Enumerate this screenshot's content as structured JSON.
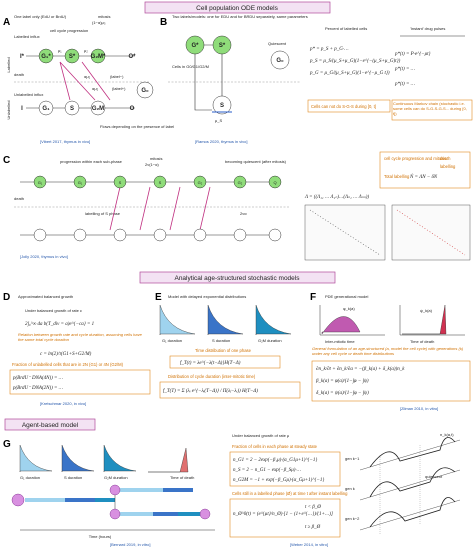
{
  "headers": {
    "ode": "Cell population ODE models",
    "age": "Analytical age-structured stochastic models",
    "agent": "Agent-based model"
  },
  "A": {
    "letter": "A",
    "note": "One label only (EdU or BrdU)",
    "labelled_influx": "Labelled influx",
    "unlabelled_influx": "Unlabelled influx",
    "mitosis": "mitosis",
    "mitosis_rate": "(1−α)μ₃",
    "progression": "cell cycle progression",
    "death": "death",
    "label_plus": "(label+)",
    "label_minus": "(label−)",
    "flows": "Flows depending on the presence of label",
    "citation": "[Vibert 2017, thymus in vivo]",
    "row_labelled": "Labelled",
    "row_unlabelled": "Unlabelled",
    "nodes": [
      "I*",
      "G₁*",
      "S*",
      "G₂M*",
      "O*",
      "I",
      "G₁",
      "S",
      "G₂M",
      "O",
      "G₀"
    ],
    "rates": [
      "μ₁",
      "μ₂",
      "αμ₂",
      "αμ₂"
    ]
  },
  "B": {
    "letter": "B",
    "note": "Two labels/models: one for EDU and for BRDU separately, same parameters",
    "cells": "Cells in G0/G1/G2/M",
    "quiescent": "Quiescent",
    "citation": "[Ramos 2020, thymus in vivo]",
    "nodes": [
      "G*",
      "S*",
      "G₀",
      "S"
    ],
    "rate": "μ_S",
    "percent": "Percent of labelled cells",
    "pulses": "'Instant' drug pulses",
    "formulas": [
      "p* = p_S + p_G·…",
      "p_S = μ_S/(μ_S+μ_G)(1−e^{−(μ_S+μ_G)t})",
      "p_G = μ_G/(μ_S+μ_G)(1−e^{−μ_G t})"
    ],
    "markov": [
      "p*(t) = P·e^{−μt}",
      "p*(t) = …",
      "p*(t) = …"
    ],
    "box1": "Cells can not do S-G-S during [0, t]",
    "box2": "Continuous Markov chain (stochastic i.e. some cells can do S-G-S-G-S... during [0, t])"
  },
  "C": {
    "letter": "C",
    "progression": "progression within each sub-phase",
    "mitosis": "mitosis",
    "mitosis_rate": "2ν(1−α)",
    "quiescent": "becoming quiescent (after mitosis)",
    "death": "death",
    "labelling": "labelling of S phase",
    "mitosis2": "2να",
    "nodes": [
      "G₁",
      "G₁",
      "S",
      "S",
      "G₂",
      "G₂",
      "Q"
    ],
    "citation": "[Jolly 2020, thymus in vivo]",
    "box_title": "cell cycle progression and mitosis",
    "box_death": "death",
    "box_label": "labelling",
    "total": "Total labelling",
    "eq": "Ṅ = ΛN − δN",
    "matrix": "Λ = ((Λ₁₁ … Λ₁ₙ)…(Λₙ₁ … Λₙₙ))"
  },
  "D": {
    "letter": "D",
    "title": "Approximated balanced growth",
    "growth": "Under balanced growth of rate c",
    "eq1": "2∫₀^∞ da b(T_div = a)e^{−ca} = 1",
    "note1": "Relation between growth rate and cycle duration, assuming cells have the same total cycle duration",
    "eq2": "c = ln(2)/τ(G1+S+G2/M)",
    "note2": "Fraction of unlabelled cells that are in 2N (G1) or 4N (G2/M)",
    "eq3": "p(BrdU⁻ DNA(4N)) = …",
    "eq4": "p(BrdU⁻ DNA(2N)) = …",
    "citation": "[Kretschmar 2020, in vivo]"
  },
  "E": {
    "letter": "E",
    "title": "Model with delayed exponential distributions",
    "g1": "G₁ duration",
    "s": "S duration",
    "g2m": "G₂M duration",
    "phase": "Time distribution of one phase",
    "eq1": "f_T(t) = λe^{−λ(t−Δ)}H(T−Δ)",
    "cycle": "Distribution of cycle duration (inter-mitotic time)",
    "eq2": "f_T(T) = Σ (λᵢ e^{−λᵢ(T−Δ)} / Π(λⱼ−λᵢ)) H(T−Δ)"
  },
  "F": {
    "letter": "F",
    "title": "PDE generational model",
    "inter": "Inter-mitotic time",
    "death": "Time of death",
    "phi": "φ_k(a)",
    "psi": "ψ_k(a)",
    "general": "General formulation of an age-structured (a, model the cell cycle) with generations (k) under any cell cycle or death time distributions",
    "eq1": "∂n_k/∂t + ∂n_k/∂a = −(β_k(a) + δ_k(a))n_k",
    "eq2": "β_k(a) = φ(a)/(1−∫φ − ∫ψ)",
    "eq3": "δ_k(a) = ψ(a)/(1−∫φ − ∫ψ)",
    "citation": "[Zilman 2010, in vitro]"
  },
  "G": {
    "letter": "G",
    "g1": "G₁ duration",
    "s": "S duration",
    "g2m": "G₂M duration",
    "death": "Time of death",
    "time": "Time (hours)",
    "citation": "[Bernard 2019, in vitro]",
    "growth": "Under balanced growth of rate μ",
    "fraction": "Fraction of cells in each phase at steady state",
    "eq1": "n_G1 = 2 − 2exp(−β₁μ)·(α_G1μ+1)^{−1}",
    "eq2": "n_S = 2 − n_G1 − exp(−β_Sμ)·…",
    "eq3": "n_G2M = −1 + exp(−β_Gμ)·(α_Gμ+1)^{−1}",
    "still": "Cells still in a labelled phase (Ø) at time t after instant labelling",
    "eq4": "n_Ø^0(t) = (e^{μt}/n_Ø)·[1 − (1+e^{…})/(1+…)]",
    "cond1": "t < β_Ø",
    "cond2": "t ≥ β_Ø",
    "citation2": "[Weber 2014, in vitro]",
    "gens": [
      "gen k−1",
      "gen k",
      "gen k−2"
    ],
    "quiescent": "quiescent",
    "nk": "n_k(a,t)"
  }
}
